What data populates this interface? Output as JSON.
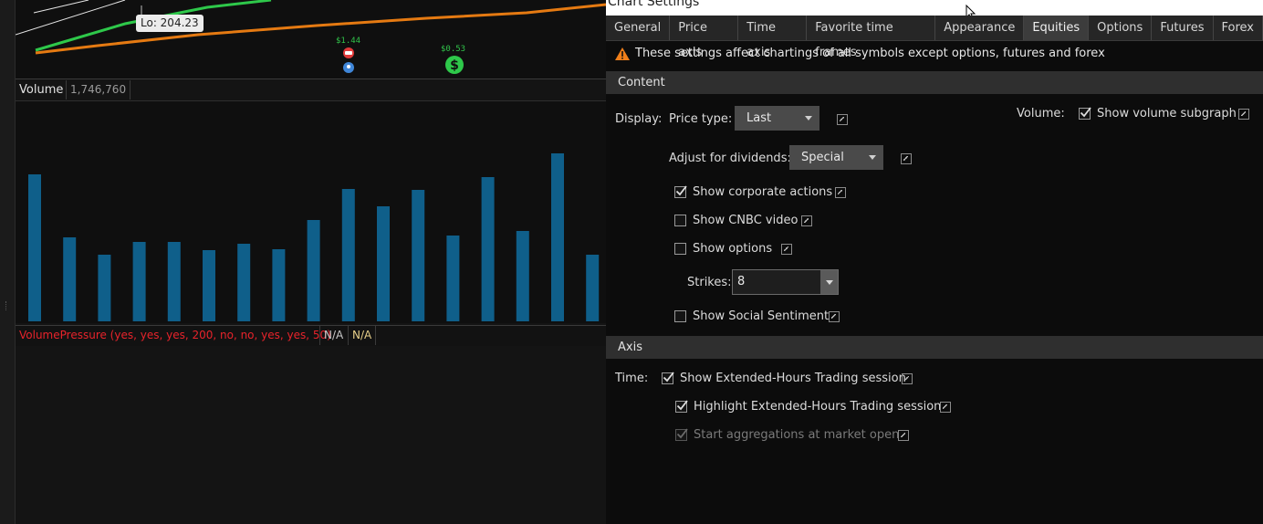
{
  "chart": {
    "lo_label": "Lo: 204.23",
    "dividend_top": "$1.44",
    "dividend_right": "$0.53",
    "volume_title": "Volume",
    "volume_value": "1,746,760",
    "volume_bars": [
      161,
      92,
      73,
      87,
      87,
      78,
      85,
      79,
      111,
      145,
      126,
      144,
      94,
      158,
      99,
      184,
      73
    ],
    "bar_color": "#0f5f8a",
    "study_title": "VolumePressure (yes, yes, yes, 200, no, no, yes, yes, 50)",
    "study_na_1": "N/A",
    "study_na_2": "N/A",
    "study_color": "#e8232b"
  },
  "dialog": {
    "title": "Chart Settings",
    "tabs": [
      "General",
      "Price axis",
      "Time axis",
      "Favorite time frames",
      "Appearance",
      "Equities",
      "Options",
      "Futures",
      "Forex"
    ],
    "active_tab": "Equities",
    "warning": "These settings affect chartings of all symbols except options, futures and forex",
    "content": {
      "header": "Content",
      "display_label": "Display:",
      "price_type_label": "Price type:",
      "price_type_value": "Last",
      "volume_label": "Volume:",
      "show_volume_subgraph": "Show volume subgraph",
      "adjust_dividends_label": "Adjust for dividends:",
      "adjust_dividends_value": "Special",
      "show_corporate_actions": "Show corporate actions",
      "show_cnbc_video": "Show CNBC video",
      "show_options": "Show options",
      "strikes_label": "Strikes:",
      "strikes_value": "8",
      "show_social_sentiment": "Show Social Sentiment"
    },
    "axis": {
      "header": "Axis",
      "time_label": "Time:",
      "show_extended_hours": "Show Extended-Hours Trading session",
      "highlight_extended_hours": "Highlight Extended-Hours Trading session",
      "start_aggregations": "Start aggregations at market open"
    },
    "checks": {
      "volume_subgraph": true,
      "corporate_actions": true,
      "cnbc_video": false,
      "options": false,
      "social_sentiment": false,
      "extended_hours": true,
      "highlight_extended": true,
      "start_aggregations": true
    },
    "colors": {
      "warning": "#f07f1a",
      "accent_orange": "#e57a12",
      "accent_green": "#2ec84a"
    }
  }
}
